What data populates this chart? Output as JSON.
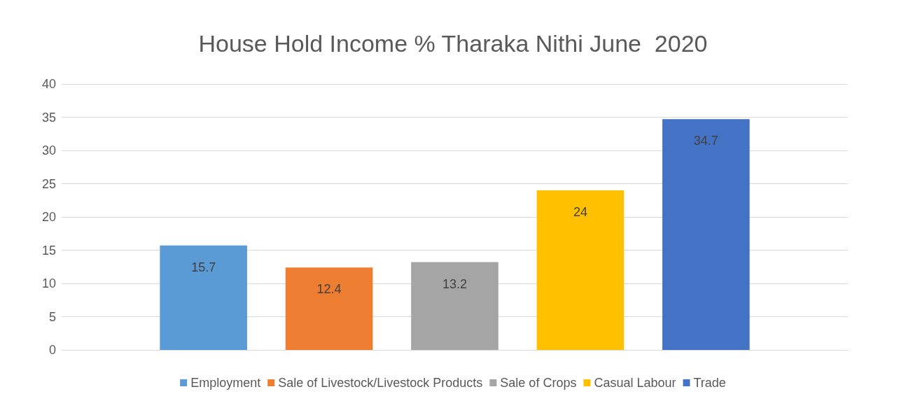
{
  "chart_data": {
    "type": "bar",
    "title": "House Hold Income % Tharaka Nithi June  2020",
    "categories": [
      null
    ],
    "series": [
      {
        "name": "Employment",
        "color": "#5b9bd5",
        "values": [
          15.7
        ]
      },
      {
        "name": "Sale of Livestock/Livestock Products",
        "color": "#ed7d31",
        "values": [
          12.4
        ]
      },
      {
        "name": "Sale of Crops",
        "color": "#a5a5a5",
        "values": [
          13.2
        ]
      },
      {
        "name": "Casual Labour",
        "color": "#ffc000",
        "values": [
          24
        ]
      },
      {
        "name": "Trade",
        "color": "#4472c4",
        "values": [
          34.7
        ]
      }
    ],
    "ylim": [
      0,
      40
    ],
    "yticks": [
      0,
      5,
      10,
      15,
      20,
      25,
      30,
      35,
      40
    ],
    "grid": "y",
    "legend": "bottom",
    "data_labels": true
  }
}
